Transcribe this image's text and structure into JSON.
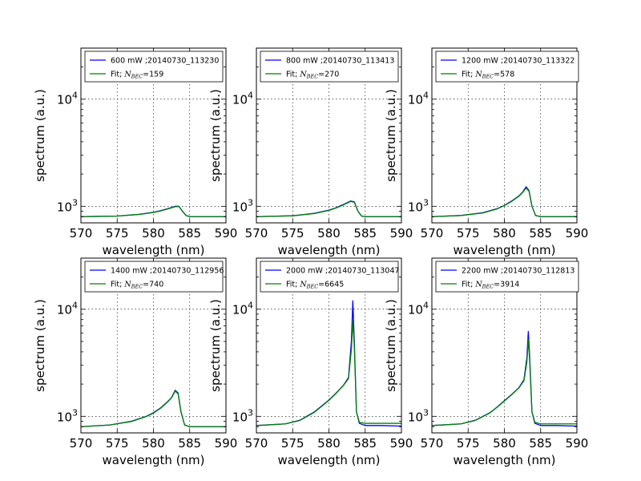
{
  "chart_data": [
    {
      "type": "line",
      "xlabel": "wavelength (nm)",
      "ylabel": "spectrum (a.u.)",
      "xlim": [
        570,
        590
      ],
      "ylim": [
        700,
        30000
      ],
      "yscale": "log",
      "x_ticks": [
        "570",
        "575",
        "580",
        "585",
        "590"
      ],
      "y_ticks": [
        {
          "value": 1000,
          "base": "10",
          "exp": "3"
        },
        {
          "value": 10000,
          "base": "10",
          "exp": "4"
        }
      ],
      "grid": true,
      "legend_position": "top",
      "series": [
        {
          "name": "600 mW ;20140730_113230",
          "color": "#0000ff",
          "x": [
            570,
            575,
            578,
            580,
            581,
            582,
            583,
            583.5,
            584,
            584.5,
            585,
            590
          ],
          "y": [
            800,
            810,
            840,
            880,
            910,
            950,
            1000,
            1000,
            900,
            820,
            800,
            800
          ]
        },
        {
          "name": "Fit; N_BEC=159",
          "label_prefix": "Fit; ",
          "label_symbol": "N",
          "label_sub": "BEC",
          "label_value": "=159",
          "color": "#008000",
          "x": [
            570,
            575,
            578,
            580,
            581,
            582,
            583,
            583.5,
            584,
            584.5,
            585,
            590
          ],
          "y": [
            800,
            810,
            840,
            875,
            905,
            945,
            990,
            995,
            900,
            820,
            800,
            800
          ]
        }
      ]
    },
    {
      "type": "line",
      "xlabel": "wavelength (nm)",
      "ylabel": "spectrum (a.u.)",
      "xlim": [
        570,
        590
      ],
      "ylim": [
        700,
        30000
      ],
      "yscale": "log",
      "x_ticks": [
        "570",
        "575",
        "580",
        "585",
        "590"
      ],
      "y_ticks": [
        {
          "value": 1000,
          "base": "10",
          "exp": "3"
        },
        {
          "value": 10000,
          "base": "10",
          "exp": "4"
        }
      ],
      "grid": true,
      "legend_position": "top",
      "series": [
        {
          "name": "800 mW ;20140730_113413",
          "color": "#0000ff",
          "x": [
            570,
            575,
            578,
            580,
            581,
            582,
            583,
            583.5,
            584,
            584.5,
            585,
            590
          ],
          "y": [
            800,
            815,
            860,
            920,
            970,
            1040,
            1120,
            1100,
            900,
            810,
            800,
            800
          ]
        },
        {
          "name": "Fit; N_BEC=270",
          "label_prefix": "Fit; ",
          "label_symbol": "N",
          "label_sub": "BEC",
          "label_value": "=270",
          "color": "#008000",
          "x": [
            570,
            575,
            578,
            580,
            581,
            582,
            583,
            583.5,
            584,
            584.5,
            585,
            590
          ],
          "y": [
            800,
            815,
            855,
            915,
            965,
            1030,
            1110,
            1090,
            900,
            810,
            800,
            800
          ]
        }
      ]
    },
    {
      "type": "line",
      "xlabel": "wavelength (nm)",
      "ylabel": "spectrum (a.u.)",
      "xlim": [
        570,
        590
      ],
      "ylim": [
        700,
        30000
      ],
      "yscale": "log",
      "x_ticks": [
        "570",
        "575",
        "580",
        "585",
        "590"
      ],
      "y_ticks": [
        {
          "value": 1000,
          "base": "10",
          "exp": "3"
        },
        {
          "value": 10000,
          "base": "10",
          "exp": "4"
        }
      ],
      "grid": true,
      "legend_position": "top",
      "series": [
        {
          "name": "1200 mW ;20140730_113322",
          "color": "#0000ff",
          "x": [
            570,
            574,
            577,
            579,
            580,
            581,
            582,
            582.5,
            583,
            583.4,
            583.8,
            584.3,
            585,
            590
          ],
          "y": [
            800,
            820,
            870,
            950,
            1020,
            1120,
            1250,
            1350,
            1520,
            1400,
            1000,
            820,
            800,
            800
          ]
        },
        {
          "name": "Fit; N_BEC=578",
          "label_prefix": "Fit; ",
          "label_symbol": "N",
          "label_sub": "BEC",
          "label_value": "=578",
          "color": "#008000",
          "x": [
            570,
            574,
            577,
            579,
            580,
            581,
            582,
            582.5,
            583,
            583.4,
            583.8,
            584.3,
            585,
            590
          ],
          "y": [
            800,
            820,
            865,
            945,
            1015,
            1110,
            1240,
            1340,
            1480,
            1380,
            1000,
            820,
            800,
            800
          ]
        }
      ]
    },
    {
      "type": "line",
      "xlabel": "wavelength (nm)",
      "ylabel": "spectrum (a.u.)",
      "xlim": [
        570,
        590
      ],
      "ylim": [
        700,
        30000
      ],
      "yscale": "log",
      "x_ticks": [
        "570",
        "575",
        "580",
        "585",
        "590"
      ],
      "y_ticks": [
        {
          "value": 1000,
          "base": "10",
          "exp": "3"
        },
        {
          "value": 10000,
          "base": "10",
          "exp": "4"
        }
      ],
      "grid": true,
      "legend_position": "top",
      "series": [
        {
          "name": "1400 mW ;20140730_112956",
          "color": "#0000ff",
          "x": [
            570,
            574,
            577,
            579,
            580,
            581,
            582,
            582.5,
            583,
            583.4,
            583.8,
            584.3,
            585,
            590
          ],
          "y": [
            800,
            830,
            900,
            1000,
            1080,
            1200,
            1380,
            1500,
            1750,
            1650,
            1100,
            830,
            800,
            800
          ]
        },
        {
          "name": "Fit; N_BEC=740",
          "label_prefix": "Fit; ",
          "label_symbol": "N",
          "label_sub": "BEC",
          "label_value": "=740",
          "color": "#008000",
          "x": [
            570,
            574,
            577,
            579,
            580,
            581,
            582,
            582.5,
            583,
            583.4,
            583.8,
            584.3,
            585,
            590
          ],
          "y": [
            800,
            830,
            895,
            995,
            1070,
            1190,
            1370,
            1490,
            1720,
            1620,
            1100,
            830,
            800,
            800
          ]
        }
      ]
    },
    {
      "type": "line",
      "xlabel": "wavelength (nm)",
      "ylabel": "spectrum (a.u.)",
      "xlim": [
        570,
        590
      ],
      "ylim": [
        700,
        30000
      ],
      "yscale": "log",
      "x_ticks": [
        "570",
        "575",
        "580",
        "585",
        "590"
      ],
      "y_ticks": [
        {
          "value": 1000,
          "base": "10",
          "exp": "3"
        },
        {
          "value": 10000,
          "base": "10",
          "exp": "4"
        }
      ],
      "grid": true,
      "legend_position": "top",
      "series": [
        {
          "name": "2000 mW ;20140730_113047",
          "color": "#0000ff",
          "x": [
            570,
            574,
            576,
            578,
            579,
            580,
            581,
            582,
            582.7,
            583.1,
            583.3,
            583.5,
            583.8,
            584.2,
            585,
            587,
            590
          ],
          "y": [
            820,
            850,
            920,
            1100,
            1250,
            1420,
            1650,
            1950,
            2300,
            5000,
            12000,
            5000,
            1100,
            860,
            820,
            820,
            810
          ]
        },
        {
          "name": "Fit; N_BEC=6645",
          "label_prefix": "Fit; ",
          "label_symbol": "N",
          "label_sub": "BEC",
          "label_value": "=6645",
          "color": "#008000",
          "x": [
            570,
            574,
            576,
            578,
            579,
            580,
            581,
            582,
            582.7,
            583.1,
            583.3,
            583.5,
            583.8,
            584.2,
            585,
            587,
            590
          ],
          "y": [
            820,
            850,
            915,
            1090,
            1240,
            1410,
            1640,
            1940,
            2250,
            4200,
            7800,
            4500,
            1100,
            880,
            860,
            860,
            860
          ]
        }
      ]
    },
    {
      "type": "line",
      "xlabel": "wavelength (nm)",
      "ylabel": "spectrum (a.u.)",
      "xlim": [
        570,
        590
      ],
      "ylim": [
        700,
        30000
      ],
      "yscale": "log",
      "x_ticks": [
        "570",
        "575",
        "580",
        "585",
        "590"
      ],
      "y_ticks": [
        {
          "value": 1000,
          "base": "10",
          "exp": "3"
        },
        {
          "value": 10000,
          "base": "10",
          "exp": "4"
        }
      ],
      "grid": true,
      "legend_position": "top",
      "series": [
        {
          "name": "2200 mW ;20140730_112813",
          "color": "#0000ff",
          "x": [
            570,
            574,
            576,
            578,
            579,
            580,
            581,
            582,
            582.7,
            583.1,
            583.3,
            583.5,
            583.8,
            584.2,
            585,
            587,
            590
          ],
          "y": [
            820,
            850,
            920,
            1080,
            1220,
            1400,
            1600,
            1850,
            2200,
            3500,
            6200,
            3500,
            1100,
            860,
            820,
            820,
            810
          ]
        },
        {
          "name": "Fit; N_BEC=3914",
          "label_prefix": "Fit; ",
          "label_symbol": "N",
          "label_sub": "BEC",
          "label_value": "=3914",
          "color": "#008000",
          "x": [
            570,
            574,
            576,
            578,
            579,
            580,
            581,
            582,
            582.7,
            583.1,
            583.3,
            583.5,
            583.8,
            584.2,
            585,
            587,
            590
          ],
          "y": [
            820,
            850,
            915,
            1075,
            1215,
            1390,
            1590,
            1840,
            2150,
            3200,
            5200,
            3200,
            1100,
            880,
            850,
            850,
            850
          ]
        }
      ]
    }
  ]
}
